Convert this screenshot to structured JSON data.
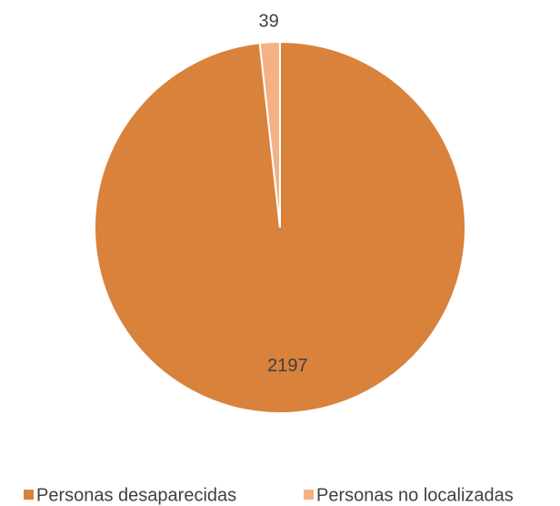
{
  "chart_data": {
    "type": "pie",
    "categories": [
      "Personas desaparecidas",
      "Personas no localizadas"
    ],
    "values": [
      2197,
      39
    ],
    "colors": [
      "#d9823b",
      "#f4b183"
    ],
    "legend": "bottom"
  }
}
